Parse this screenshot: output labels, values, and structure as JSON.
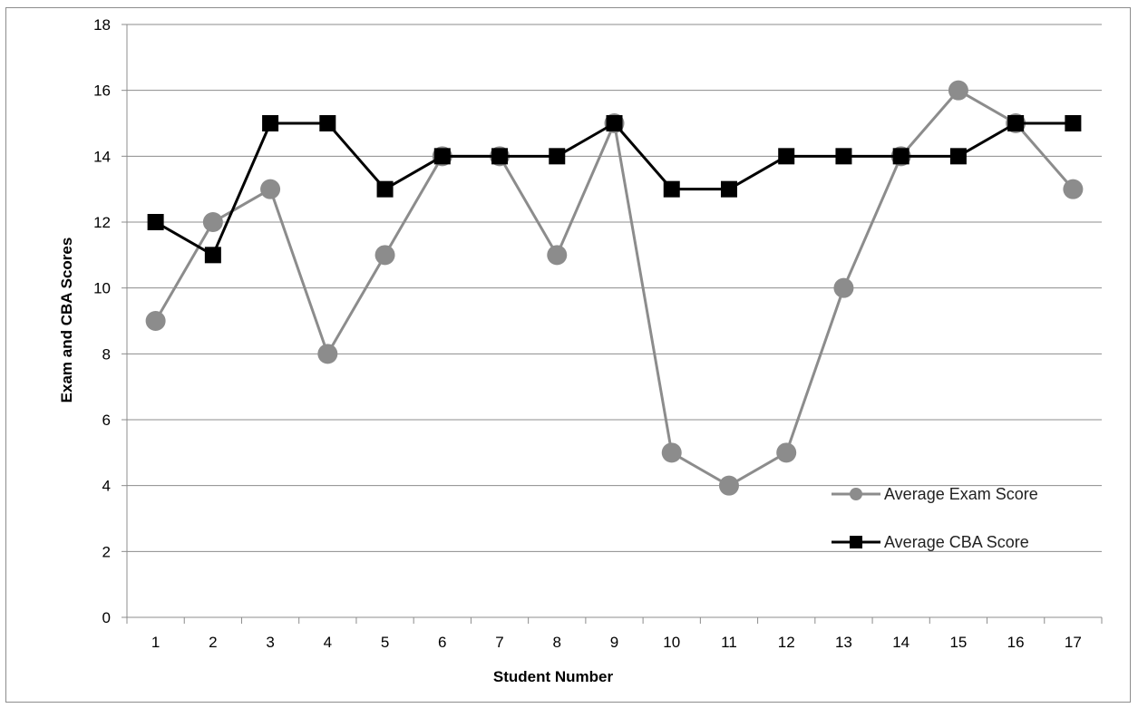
{
  "chart_data": {
    "type": "line",
    "title": "",
    "xlabel": "Student Number",
    "ylabel": "Exam and CBA Scores",
    "categories": [
      "1",
      "2",
      "3",
      "4",
      "5",
      "6",
      "7",
      "8",
      "9",
      "10",
      "11",
      "12",
      "13",
      "14",
      "15",
      "16",
      "17"
    ],
    "ylim": [
      0,
      18
    ],
    "yticks": [
      0,
      2,
      4,
      6,
      8,
      10,
      12,
      14,
      16,
      18
    ],
    "grid": "horizontal",
    "legend_position": "right",
    "series": [
      {
        "name": "Average Exam Score",
        "color": "#8c8c8c",
        "marker": "circle",
        "values": [
          9,
          12,
          13,
          8,
          11,
          14,
          14,
          11,
          15,
          5,
          4,
          5,
          10,
          14,
          16,
          15,
          13
        ]
      },
      {
        "name": "Average CBA Score",
        "color": "#000000",
        "marker": "square",
        "values": [
          12,
          11,
          15,
          15,
          13,
          14,
          14,
          14,
          15,
          13,
          13,
          14,
          14,
          14,
          14,
          15,
          15
        ]
      }
    ]
  }
}
